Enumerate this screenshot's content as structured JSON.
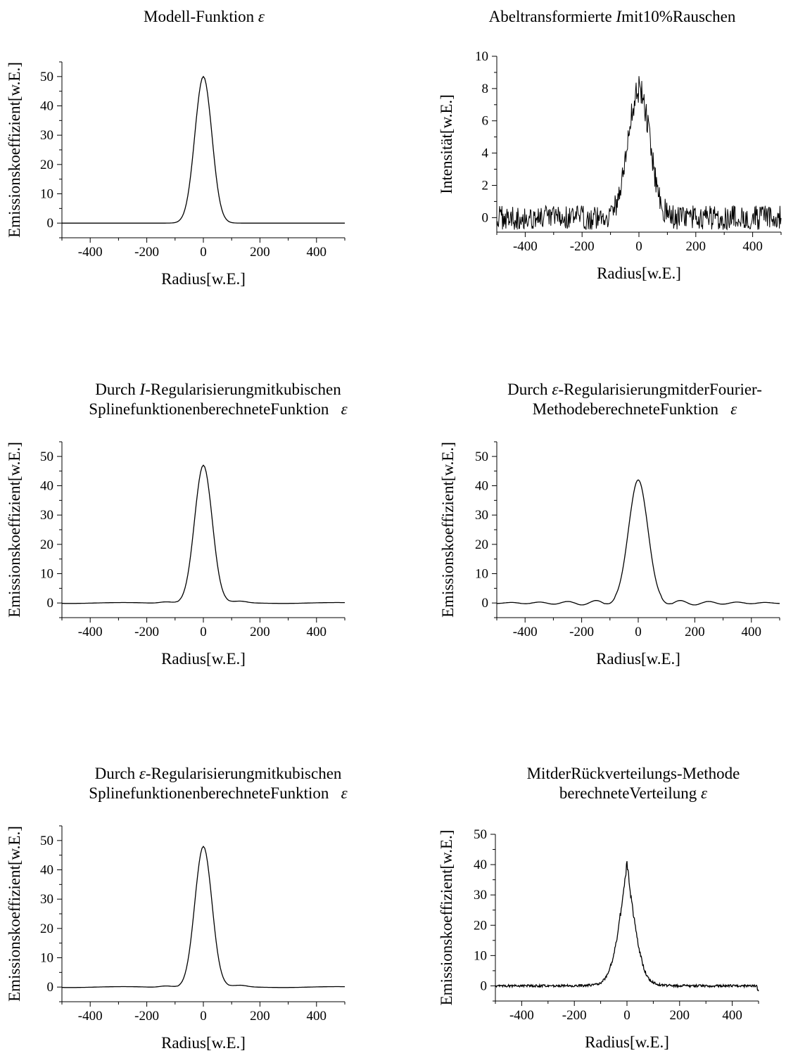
{
  "chart_data": [
    {
      "type": "line",
      "title": "Modell-Funktion ε",
      "title_lines": [
        {
          "text": "Modell-Funktion ",
          "symbol": "ε"
        }
      ],
      "xlabel": "Radius[w.E.]",
      "ylabel": "Emissionskoeffizient[w.E.]",
      "xlim": [
        -500,
        500
      ],
      "ylim": [
        -5,
        55
      ],
      "xticks": [
        -400,
        -200,
        0,
        200,
        400
      ],
      "yticks": [
        0,
        10,
        20,
        30,
        40,
        50
      ],
      "grid": false,
      "curve": {
        "kind": "gaussian",
        "amplitude": 50,
        "sigma": 30,
        "x_step": 5
      },
      "series": [
        {
          "values_description": "",
          "x": [
            -500,
            -300,
            -150,
            -100,
            -75,
            -50,
            -25,
            0,
            25,
            50,
            75,
            100,
            150,
            300,
            500
          ],
          "y": [
            0,
            0,
            0,
            0.2,
            2.2,
            10.5,
            27.8,
            50,
            27.8,
            10.5,
            2.2,
            0.2,
            0,
            0,
            0
          ]
        }
      ]
    },
    {
      "type": "line",
      "title": "Abeltransformierte Imit10%Rauschen",
      "title_lines": [
        {
          "text": "Abeltransformierte ",
          "italic": "I",
          "rest": "mit10%Rauschen"
        }
      ],
      "xlabel": "Radius[w.E.]",
      "ylabel": "Intensität[w.E.]",
      "xlim": [
        -500,
        500
      ],
      "ylim": [
        -0.9,
        10
      ],
      "xticks": [
        -400,
        -200,
        0,
        200,
        400
      ],
      "yticks": [
        0,
        2,
        4,
        6,
        8,
        10
      ],
      "grid": false,
      "curve": {
        "kind": "noisy-gaussian",
        "amplitude": 8.0,
        "sigma": 38,
        "noise": 0.75,
        "x_step": 2
      },
      "series": [
        {
          "x": [
            -500,
            -300,
            -100,
            -50,
            -25,
            0,
            25,
            50,
            100,
            300,
            500
          ],
          "y": [
            0,
            0,
            0.2,
            2.6,
            6.5,
            8.3,
            6.5,
            2.6,
            0.2,
            0,
            0
          ]
        }
      ]
    },
    {
      "type": "line",
      "title": "Durch I-Regularisierungmitkubischen SplinefunktionenberechneteFunktion ε",
      "title_lines": [
        {
          "text": "Durch ",
          "italic": "I",
          "rest": "-Regularisierungmitkubischen"
        },
        {
          "text": "SplinefunktionenberechneteFunktion",
          "symbol": "ε"
        }
      ],
      "xlabel": "Radius[w.E.]",
      "ylabel": "Emissionskoeffizient[w.E.]",
      "xlim": [
        -500,
        500
      ],
      "ylim": [
        -5,
        55
      ],
      "xticks": [
        -400,
        -200,
        0,
        200,
        400
      ],
      "yticks": [
        0,
        10,
        20,
        30,
        40,
        50
      ],
      "grid": false,
      "curve": {
        "kind": "gaussian-ripple",
        "amplitude": 47,
        "sigma": 31,
        "ripple": 0.5,
        "x_step": 5
      },
      "series": [
        {
          "x": [
            -500,
            -150,
            -130,
            -100,
            -50,
            0,
            50,
            100,
            130,
            150,
            500
          ],
          "y": [
            0,
            0.2,
            0.5,
            0.3,
            10,
            47,
            10,
            0.3,
            0.5,
            0.2,
            0
          ]
        }
      ]
    },
    {
      "type": "line",
      "title": "Durch ε-RegularisierungmitderFourier- MethodeberechneteFunktion ε",
      "title_lines": [
        {
          "text": "Durch ",
          "symbol_inline": "ε",
          "rest": "-RegularisierungmitderFourier-"
        },
        {
          "text": "MethodeberechneteFunktion",
          "symbol": "ε"
        }
      ],
      "xlabel": "Radius[w.E.]",
      "ylabel": "Emissionskoeffizient[w.E.]",
      "xlim": [
        -500,
        500
      ],
      "ylim": [
        -5,
        55
      ],
      "xticks": [
        -400,
        -200,
        0,
        200,
        400
      ],
      "yticks": [
        0,
        10,
        20,
        30,
        40,
        50
      ],
      "grid": false,
      "curve": {
        "kind": "sinc-like",
        "amplitude": 42,
        "sigma": 34,
        "ripple": 1.3,
        "x_step": 4
      },
      "series": [
        {
          "x": [
            -500,
            -150,
            -100,
            -50,
            0,
            50,
            100,
            150,
            500
          ],
          "y": [
            0,
            1.2,
            -1,
            12,
            42,
            12,
            -1,
            1.2,
            0
          ]
        }
      ]
    },
    {
      "type": "line",
      "title": "Durch ε-Regularisierungmitkubischen SplinefunktionenberechneteFunktion ε",
      "title_lines": [
        {
          "text": "Durch ",
          "symbol_inline": "ε",
          "rest": "-Regularisierungmitkubischen"
        },
        {
          "text": "SplinefunktionenberechneteFunktion",
          "symbol": "ε"
        }
      ],
      "xlabel": "Radius[w.E.]",
      "ylabel": "Emissionskoeffizient[w.E.]",
      "xlim": [
        -500,
        500
      ],
      "ylim": [
        -5,
        55
      ],
      "xticks": [
        -400,
        -200,
        0,
        200,
        400
      ],
      "yticks": [
        0,
        10,
        20,
        30,
        40,
        50
      ],
      "grid": false,
      "curve": {
        "kind": "gaussian-ripple",
        "amplitude": 48,
        "sigma": 30,
        "ripple": 0.5,
        "x_step": 5
      },
      "series": [
        {
          "x": [
            -500,
            -150,
            -130,
            -100,
            -50,
            0,
            50,
            100,
            130,
            150,
            500
          ],
          "y": [
            0,
            0.2,
            0.5,
            0.3,
            10,
            48,
            10,
            0.3,
            0.5,
            0.2,
            0
          ]
        }
      ]
    },
    {
      "type": "line",
      "title": "MitderRückverteilungs-Methode berechneteVerteilung ε",
      "title_lines": [
        {
          "text": "MitderRückverteilungs-Methode"
        },
        {
          "text": "berechneteVerteilung ",
          "symbol": "ε"
        }
      ],
      "xlabel": "Radius[w.E.]",
      "ylabel": "Emissionskoeffizient[w.E.]",
      "xlim": [
        -500,
        500
      ],
      "ylim": [
        -5,
        50
      ],
      "xticks": [
        -400,
        -200,
        0,
        200,
        400
      ],
      "yticks": [
        0,
        10,
        20,
        30,
        40,
        50
      ],
      "grid": false,
      "curve": {
        "kind": "cusp-noisy",
        "amplitude": 40,
        "peak": 42,
        "decay": 30,
        "noise": 0.8,
        "x_step": 2
      },
      "series": [
        {
          "x": [
            -500,
            -200,
            -100,
            -50,
            -25,
            0,
            25,
            50,
            100,
            200,
            500
          ],
          "y": [
            0,
            0.3,
            3,
            13,
            25,
            42,
            25,
            13,
            3,
            0.3,
            -1
          ]
        }
      ]
    }
  ]
}
